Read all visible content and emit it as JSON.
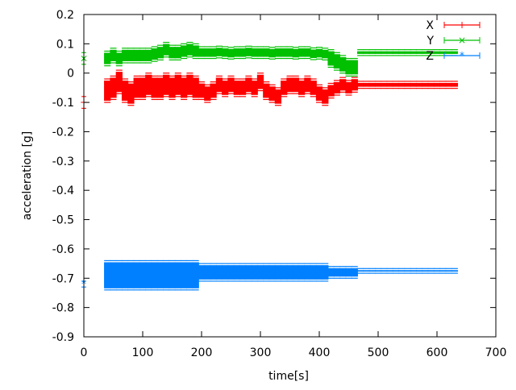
{
  "chart_data": {
    "type": "scatter",
    "title": "",
    "xlabel": "time[s]",
    "ylabel": "acceleration [g]",
    "xlim": [
      0,
      700
    ],
    "ylim": [
      -0.9,
      0.2
    ],
    "xticks": [
      "0",
      "100",
      "200",
      "300",
      "400",
      "500",
      "600",
      "700"
    ],
    "yticks": [
      "0.2",
      "0.1",
      "0",
      "-0.1",
      "-0.2",
      "-0.3",
      "-0.4",
      "-0.5",
      "-0.6",
      "-0.7",
      "-0.8",
      "-0.9"
    ],
    "grid": false,
    "legend_position": "top-right",
    "error_bars": true,
    "x": [
      0,
      40,
      50,
      60,
      70,
      80,
      90,
      100,
      110,
      120,
      130,
      140,
      150,
      160,
      170,
      180,
      190,
      200,
      210,
      220,
      230,
      240,
      250,
      260,
      270,
      280,
      290,
      300,
      310,
      320,
      330,
      340,
      350,
      360,
      370,
      380,
      390,
      400,
      410,
      420,
      430,
      440,
      450,
      460,
      470,
      480,
      490,
      500,
      510,
      520,
      530,
      540,
      550,
      560,
      570,
      580,
      590,
      600,
      610,
      620,
      630
    ],
    "series": [
      {
        "name": "X",
        "color": "#ff0000",
        "marker": "+",
        "values": [
          -0.1,
          -0.06,
          -0.05,
          -0.03,
          -0.06,
          -0.07,
          -0.05,
          -0.05,
          -0.04,
          -0.05,
          -0.05,
          -0.04,
          -0.05,
          -0.04,
          -0.05,
          -0.04,
          -0.05,
          -0.06,
          -0.07,
          -0.06,
          -0.04,
          -0.05,
          -0.04,
          -0.05,
          -0.05,
          -0.04,
          -0.05,
          -0.03,
          -0.06,
          -0.07,
          -0.08,
          -0.05,
          -0.04,
          -0.04,
          -0.05,
          -0.04,
          -0.05,
          -0.07,
          -0.08,
          -0.06,
          -0.05,
          -0.04,
          -0.05,
          -0.04,
          -0.04,
          -0.04,
          -0.04,
          -0.04,
          -0.04,
          -0.04,
          -0.04,
          -0.04,
          -0.04,
          -0.04,
          -0.04,
          -0.04,
          -0.04,
          -0.04,
          -0.04,
          -0.04,
          -0.04
        ],
        "errors": [
          0.02,
          0.04,
          0.04,
          0.04,
          0.04,
          0.04,
          0.04,
          0.04,
          0.04,
          0.04,
          0.04,
          0.04,
          0.04,
          0.04,
          0.04,
          0.04,
          0.04,
          0.03,
          0.03,
          0.03,
          0.03,
          0.03,
          0.03,
          0.03,
          0.03,
          0.03,
          0.03,
          0.03,
          0.03,
          0.03,
          0.03,
          0.03,
          0.03,
          0.03,
          0.03,
          0.03,
          0.03,
          0.03,
          0.03,
          0.025,
          0.025,
          0.025,
          0.025,
          0.025,
          0.012,
          0.012,
          0.012,
          0.012,
          0.012,
          0.012,
          0.012,
          0.012,
          0.012,
          0.012,
          0.012,
          0.012,
          0.012,
          0.012,
          0.012,
          0.012,
          0.012
        ]
      },
      {
        "name": "Y",
        "color": "#00c000",
        "marker": "×",
        "values": [
          0.05,
          0.05,
          0.06,
          0.05,
          0.06,
          0.06,
          0.06,
          0.06,
          0.06,
          0.065,
          0.07,
          0.08,
          0.07,
          0.07,
          0.075,
          0.08,
          0.075,
          0.07,
          0.07,
          0.07,
          0.072,
          0.07,
          0.068,
          0.07,
          0.07,
          0.072,
          0.07,
          0.07,
          0.07,
          0.068,
          0.07,
          0.07,
          0.07,
          0.068,
          0.07,
          0.07,
          0.066,
          0.068,
          0.065,
          0.05,
          0.04,
          0.03,
          0.02,
          0.02,
          0.07,
          0.07,
          0.07,
          0.07,
          0.07,
          0.07,
          0.07,
          0.07,
          0.07,
          0.07,
          0.07,
          0.07,
          0.07,
          0.07,
          0.07,
          0.07,
          0.07
        ],
        "errors": [
          0.02,
          0.025,
          0.025,
          0.025,
          0.025,
          0.025,
          0.025,
          0.025,
          0.025,
          0.025,
          0.025,
          0.025,
          0.025,
          0.025,
          0.025,
          0.025,
          0.025,
          0.02,
          0.02,
          0.02,
          0.02,
          0.02,
          0.02,
          0.02,
          0.02,
          0.02,
          0.02,
          0.02,
          0.02,
          0.02,
          0.02,
          0.02,
          0.02,
          0.02,
          0.02,
          0.02,
          0.02,
          0.02,
          0.02,
          0.03,
          0.03,
          0.03,
          0.03,
          0.03,
          0.01,
          0.01,
          0.01,
          0.01,
          0.01,
          0.01,
          0.01,
          0.01,
          0.01,
          0.01,
          0.01,
          0.01,
          0.01,
          0.01,
          0.01,
          0.01,
          0.01
        ]
      },
      {
        "name": "Z",
        "color": "#0080ff",
        "marker": "*",
        "values": [
          -0.72,
          -0.69,
          -0.69,
          -0.69,
          -0.69,
          -0.69,
          -0.69,
          -0.69,
          -0.69,
          -0.69,
          -0.69,
          -0.69,
          -0.69,
          -0.69,
          -0.69,
          -0.69,
          -0.69,
          -0.68,
          -0.68,
          -0.68,
          -0.68,
          -0.68,
          -0.68,
          -0.68,
          -0.68,
          -0.68,
          -0.68,
          -0.68,
          -0.68,
          -0.68,
          -0.68,
          -0.68,
          -0.68,
          -0.68,
          -0.68,
          -0.68,
          -0.68,
          -0.68,
          -0.68,
          -0.68,
          -0.68,
          -0.68,
          -0.68,
          -0.68,
          -0.675,
          -0.675,
          -0.675,
          -0.675,
          -0.675,
          -0.675,
          -0.675,
          -0.675,
          -0.675,
          -0.675,
          -0.675,
          -0.675,
          -0.675,
          -0.675,
          -0.675,
          -0.675,
          -0.675
        ],
        "errors": [
          0.01,
          0.05,
          0.05,
          0.05,
          0.05,
          0.05,
          0.05,
          0.05,
          0.05,
          0.05,
          0.05,
          0.05,
          0.05,
          0.05,
          0.05,
          0.05,
          0.05,
          0.03,
          0.03,
          0.03,
          0.03,
          0.03,
          0.03,
          0.03,
          0.03,
          0.03,
          0.03,
          0.03,
          0.03,
          0.03,
          0.03,
          0.03,
          0.03,
          0.03,
          0.03,
          0.03,
          0.03,
          0.03,
          0.03,
          0.02,
          0.02,
          0.02,
          0.02,
          0.02,
          0.008,
          0.008,
          0.008,
          0.008,
          0.008,
          0.008,
          0.008,
          0.008,
          0.008,
          0.008,
          0.008,
          0.008,
          0.008,
          0.008,
          0.008,
          0.008,
          0.008
        ]
      }
    ]
  }
}
